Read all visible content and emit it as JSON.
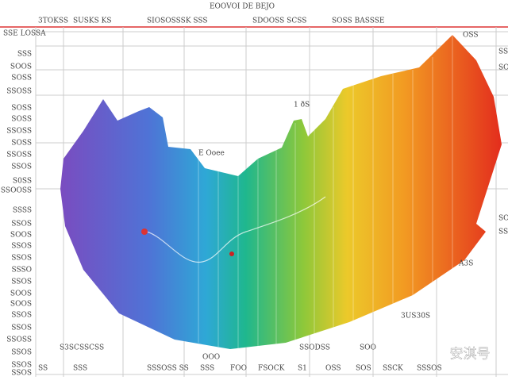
{
  "header": {
    "title": "EOOVOI  DE BEJO",
    "columns": [
      "3TOKSS",
      "SUSKS KS",
      "SIOSOSSSK SSS",
      "SDOOSS SCSS",
      "SOSS BASSSE"
    ]
  },
  "corner": {
    "left": "SSE LOSSA",
    "right": "OSS"
  },
  "left_labels": [
    "SSS",
    "SOOS",
    "SOSS",
    "SSOSS",
    "SOSS",
    "SOSS",
    "SSOSS",
    "SOSS",
    "SSOSS",
    "SSOS",
    "S0SS",
    "SSOOSS",
    "SSSS",
    "SSOS",
    "SOOS",
    "SSOS",
    "SSOS",
    "SSSO",
    "SSOS",
    "SOOS",
    "SOOS",
    "SSOS",
    "SSOS",
    "SSOSS",
    "SSOS",
    "SSOS",
    "SSOS"
  ],
  "right_labels": [
    "SSO",
    "SOS",
    "SOS",
    "SSS"
  ],
  "annotations": [
    "1 ðS",
    "E Ooee",
    "A3S",
    "3US30S",
    "S3SCSSCSS",
    "OOO",
    "SSODSS",
    "SOO"
  ],
  "bottom_labels": [
    "SS",
    "SSS",
    "SSSOSS SS",
    "SSS",
    "FOO",
    "FSOCK",
    "S1",
    "OSS",
    "SOS",
    "SSCK",
    "SSSOS"
  ],
  "watermark": "安淇号"
}
